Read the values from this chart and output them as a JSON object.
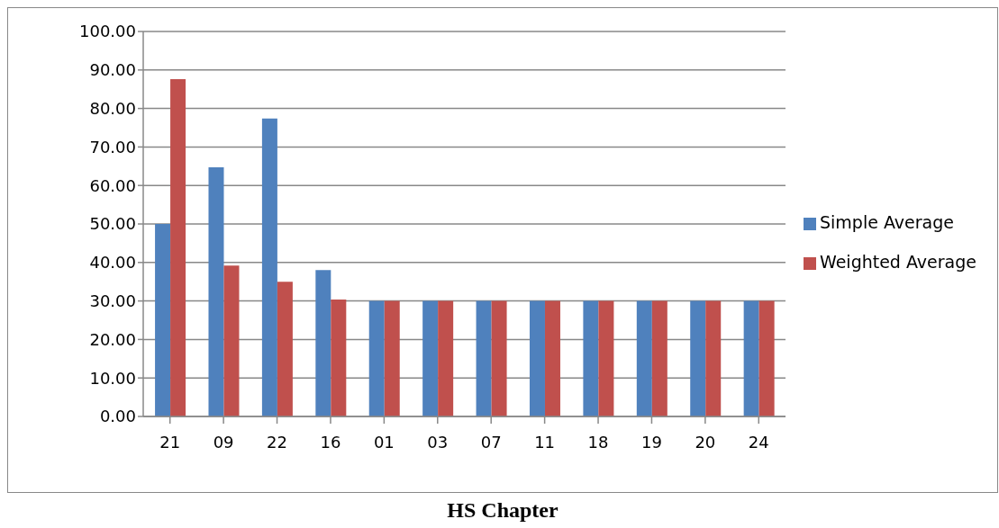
{
  "chart_data": {
    "type": "bar",
    "xlabel": "HS Chapter",
    "categories": [
      "21",
      "09",
      "22",
      "16",
      "01",
      "03",
      "07",
      "11",
      "18",
      "19",
      "20",
      "24"
    ],
    "series": [
      {
        "name": "Simple Average",
        "color": "#4f81bd",
        "values": [
          50,
          64.7,
          77.4,
          38,
          30,
          30,
          30,
          30,
          30,
          30,
          30,
          30
        ]
      },
      {
        "name": "Weighted Average",
        "color": "#c0504d",
        "values": [
          87.6,
          39.2,
          35,
          30.4,
          30,
          30,
          30,
          30,
          30,
          30,
          30,
          30
        ]
      }
    ],
    "ylim": [
      0,
      100
    ],
    "yticks": [
      {
        "value": 0,
        "label": "0.00"
      },
      {
        "value": 10,
        "label": "10.00"
      },
      {
        "value": 20,
        "label": "20.00"
      },
      {
        "value": 30,
        "label": "30.00"
      },
      {
        "value": 40,
        "label": "40.00"
      },
      {
        "value": 50,
        "label": "50.00"
      },
      {
        "value": 60,
        "label": "60.00"
      },
      {
        "value": 70,
        "label": "70.00"
      },
      {
        "value": 80,
        "label": "80.00"
      },
      {
        "value": 90,
        "label": "90.00"
      },
      {
        "value": 100,
        "label": "100.00"
      }
    ],
    "grid": "y",
    "legend": "right"
  }
}
